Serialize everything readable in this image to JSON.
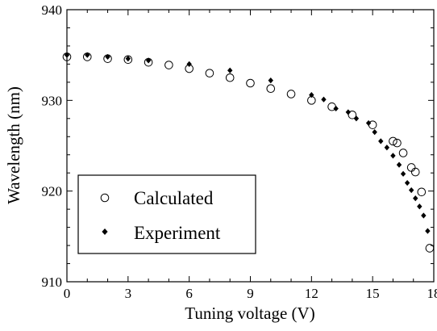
{
  "chart_data": {
    "type": "scatter",
    "xlabel": "Tuning voltage (V)",
    "ylabel": "Wavelength (nm)",
    "xlim": [
      0,
      18
    ],
    "ylim": [
      910,
      940
    ],
    "x_ticks": [
      0,
      3,
      6,
      9,
      12,
      15,
      18
    ],
    "y_ticks": [
      910,
      920,
      930,
      940
    ],
    "x_tick_labels": [
      "0",
      "3",
      "6",
      "9",
      "12",
      "15",
      "18"
    ],
    "y_tick_labels": [
      "910",
      "920",
      "930",
      "940"
    ],
    "grid": false,
    "legend_position": "bottom-left",
    "series": [
      {
        "name": "Calculated",
        "marker": "open-circle",
        "color": "#000000",
        "x": [
          0,
          1,
          2,
          3,
          4,
          5,
          6,
          7,
          8,
          9,
          10,
          11,
          12,
          13,
          14,
          15,
          16,
          16.2,
          16.5,
          16.9,
          17.1,
          17.4,
          17.8
        ],
        "y": [
          934.8,
          934.8,
          934.6,
          934.5,
          934.2,
          933.9,
          933.5,
          933.0,
          932.5,
          931.9,
          931.3,
          930.7,
          930.0,
          929.3,
          928.4,
          927.3,
          925.5,
          925.3,
          924.2,
          922.6,
          922.1,
          919.9,
          913.7
        ]
      },
      {
        "name": "Experiment",
        "marker": "filled-diamond",
        "color": "#000000",
        "x": [
          0,
          1,
          2,
          3,
          4,
          6,
          8,
          10,
          12,
          12.6,
          13.2,
          13.8,
          14.2,
          14.8,
          15.1,
          15.4,
          15.7,
          16.0,
          16.3,
          16.5,
          16.7,
          16.9,
          17.1,
          17.3,
          17.5,
          17.7
        ],
        "y": [
          935.0,
          935.0,
          934.8,
          934.6,
          934.4,
          934.0,
          933.3,
          932.2,
          930.6,
          930.1,
          929.1,
          928.7,
          928.0,
          927.5,
          926.5,
          925.5,
          924.8,
          923.9,
          922.9,
          921.9,
          920.9,
          920.1,
          919.2,
          918.3,
          917.3,
          915.6
        ]
      }
    ]
  }
}
